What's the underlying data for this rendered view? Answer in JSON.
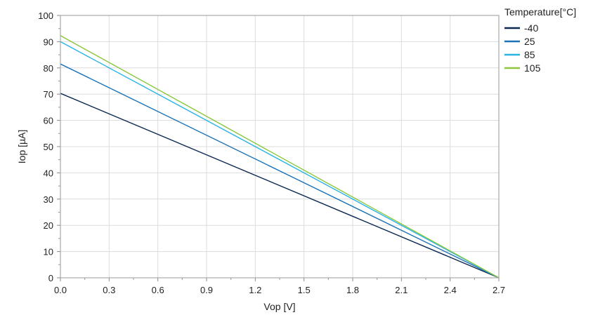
{
  "chart_data": {
    "type": "line",
    "title": "",
    "xlabel": "Vop [V]",
    "ylabel": "Iop [µA]",
    "xlim": [
      0,
      2.7
    ],
    "ylim": [
      0,
      100
    ],
    "xticks": [
      0.0,
      0.3,
      0.6,
      0.9,
      1.2,
      1.5,
      1.8,
      2.1,
      2.4,
      2.7
    ],
    "xtick_labels": [
      "0.0",
      "0.3",
      "0.6",
      "0.9",
      "1.2",
      "1.5",
      "1.8",
      "2.1",
      "2.4",
      "2.7"
    ],
    "yticks": [
      0,
      10,
      20,
      30,
      40,
      50,
      60,
      70,
      80,
      90,
      100
    ],
    "ytick_labels": [
      "0",
      "10",
      "20",
      "30",
      "40",
      "50",
      "60",
      "70",
      "80",
      "90",
      "100"
    ],
    "grid": true,
    "legend_title": "Temperature[°C]",
    "legend_position": "top-right outside",
    "series": [
      {
        "name": "-40",
        "color": "#0d2a52",
        "x": [
          0,
          2.7
        ],
        "y": [
          70.3,
          0
        ]
      },
      {
        "name": "25",
        "color": "#1a72b8",
        "x": [
          0,
          2.7
        ],
        "y": [
          81.5,
          0
        ]
      },
      {
        "name": "85",
        "color": "#29b4e6",
        "x": [
          0,
          2.7
        ],
        "y": [
          90.0,
          0
        ]
      },
      {
        "name": "105",
        "color": "#8cc63e",
        "x": [
          0,
          2.7
        ],
        "y": [
          92.3,
          0
        ]
      }
    ]
  }
}
